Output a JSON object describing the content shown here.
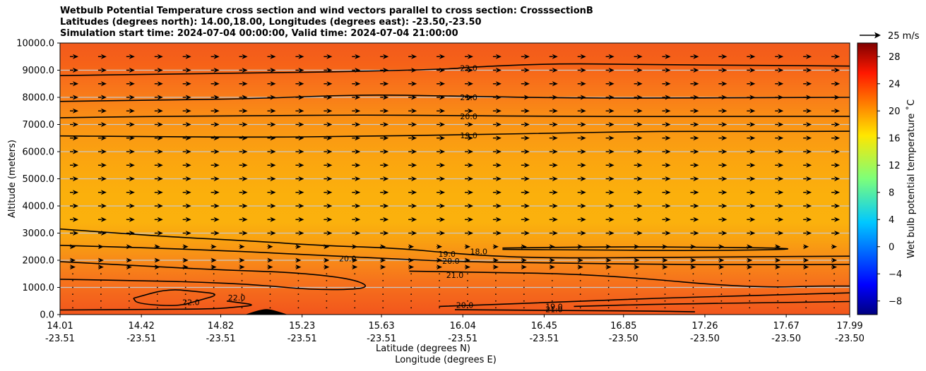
{
  "chart_data": {
    "type": "heatmap",
    "title_lines": [
      "Wetbulb Potential Temperature cross section and wind vectors parallel to cross section: CrosssectionB",
      "Latitudes (degrees north): 14.00,18.00, Longitudes (degrees east): -23.50,-23.50",
      "Simulation start time: 2024-07-04 00:00:00, Valid time: 2024-07-04 21:00:00"
    ],
    "ylabel": "Altitude (meters)",
    "xlabel_lines": [
      "Latitude (degrees N)",
      "Longitude (degrees E)"
    ],
    "ylim": [
      0,
      10000
    ],
    "y_ticks": [
      "0.0",
      "1000.0",
      "2000.0",
      "3000.0",
      "4000.0",
      "5000.0",
      "6000.0",
      "7000.0",
      "8000.0",
      "9000.0",
      "10000.0"
    ],
    "y_tick_values": [
      0,
      1000,
      2000,
      3000,
      4000,
      5000,
      6000,
      7000,
      8000,
      9000,
      10000
    ],
    "xlim": [
      14.01,
      17.99
    ],
    "x_ticks": [
      {
        "lat": "14.01",
        "lon": "-23.51",
        "value": 14.01
      },
      {
        "lat": "14.42",
        "lon": "-23.51",
        "value": 14.42
      },
      {
        "lat": "14.82",
        "lon": "-23.51",
        "value": 14.82
      },
      {
        "lat": "15.23",
        "lon": "-23.51",
        "value": 15.23
      },
      {
        "lat": "15.63",
        "lon": "-23.51",
        "value": 15.63
      },
      {
        "lat": "16.04",
        "lon": "-23.51",
        "value": 16.04
      },
      {
        "lat": "16.45",
        "lon": "-23.51",
        "value": 16.45
      },
      {
        "lat": "16.85",
        "lon": "-23.50",
        "value": 16.85
      },
      {
        "lat": "17.26",
        "lon": "-23.50",
        "value": 17.26
      },
      {
        "lat": "17.67",
        "lon": "-23.50",
        "value": 17.67
      },
      {
        "lat": "17.99",
        "lon": "-23.50",
        "value": 17.99
      }
    ],
    "grid": "horizontal",
    "colorbar": {
      "label": "Wet bulb potential temperature ˚C",
      "range": [
        -10,
        30
      ],
      "ticks": [
        "−8",
        "−4",
        "0",
        "4",
        "8",
        "12",
        "16",
        "20",
        "24",
        "28"
      ],
      "tick_values": [
        -8,
        -4,
        0,
        4,
        8,
        12,
        16,
        20,
        24,
        28
      ]
    },
    "quiver_key": {
      "label": "25 m/s",
      "value": 25
    },
    "wind_vector_levels_m": [
      0,
      250,
      500,
      750,
      1000,
      1250,
      1500,
      1750,
      2000,
      2500,
      3000,
      3500,
      4000,
      4500,
      5000,
      5500,
      6000,
      6500,
      7000,
      7500,
      8000,
      8500,
      9000,
      9500
    ],
    "contours": [
      {
        "value": 22,
        "label": "22.0",
        "points": [
          [
            14.01,
            8800
          ],
          [
            14.5,
            8850
          ],
          [
            15.0,
            8900
          ],
          [
            15.5,
            8950
          ],
          [
            16.0,
            9050
          ],
          [
            16.04,
            9100
          ],
          [
            16.5,
            9250
          ],
          [
            17.0,
            9200
          ],
          [
            17.5,
            9180
          ],
          [
            17.99,
            9150
          ]
        ],
        "label_at": [
          16.07,
          9080
        ]
      },
      {
        "value": 21,
        "label": "21.0",
        "points": [
          [
            14.01,
            7850
          ],
          [
            14.5,
            7900
          ],
          [
            15.0,
            7950
          ],
          [
            15.5,
            8100
          ],
          [
            16.0,
            8050
          ],
          [
            16.5,
            7980
          ],
          [
            17.0,
            7970
          ],
          [
            17.5,
            7990
          ],
          [
            17.99,
            8000
          ]
        ],
        "label_at": [
          16.07,
          8000
        ]
      },
      {
        "value": 20,
        "label": "20.0",
        "points": [
          [
            14.01,
            7250
          ],
          [
            14.5,
            7300
          ],
          [
            15.0,
            7320
          ],
          [
            15.5,
            7350
          ],
          [
            16.0,
            7330
          ],
          [
            16.5,
            7300
          ],
          [
            17.0,
            7290
          ],
          [
            17.5,
            7300
          ],
          [
            17.99,
            7300
          ]
        ],
        "label_at": [
          16.07,
          7300
        ]
      },
      {
        "value": 19,
        "label": "19.0",
        "points": [
          [
            14.01,
            6580
          ],
          [
            14.5,
            6550
          ],
          [
            15.0,
            6530
          ],
          [
            15.5,
            6560
          ],
          [
            16.0,
            6620
          ],
          [
            16.5,
            6680
          ],
          [
            17.0,
            6750
          ],
          [
            17.5,
            6740
          ],
          [
            17.99,
            6750
          ]
        ],
        "label_at": [
          16.07,
          6600
        ]
      },
      {
        "value": 19,
        "label": "19.0",
        "points": [
          [
            14.01,
            3150
          ],
          [
            14.3,
            3000
          ],
          [
            14.6,
            2850
          ],
          [
            15.0,
            2700
          ],
          [
            15.3,
            2550
          ],
          [
            15.7,
            2450
          ],
          [
            16.0,
            2250
          ],
          [
            16.2,
            2150
          ],
          [
            16.5,
            2080
          ],
          [
            17.0,
            2100
          ],
          [
            17.5,
            2130
          ],
          [
            17.99,
            2150
          ]
        ],
        "label_at": [
          15.96,
          2230
        ]
      },
      {
        "value": 20,
        "label": "20.0",
        "points": [
          [
            14.01,
            2550
          ],
          [
            14.5,
            2450
          ],
          [
            15.0,
            2300
          ],
          [
            15.4,
            2150
          ],
          [
            15.7,
            2050
          ],
          [
            16.0,
            1950
          ],
          [
            16.5,
            1900
          ],
          [
            17.0,
            1850
          ],
          [
            17.5,
            1830
          ],
          [
            17.99,
            1850
          ]
        ],
        "label_at": [
          15.98,
          1980
        ]
      },
      {
        "value": 20,
        "label": "20.0",
        "points": [
          [
            14.01,
            1950
          ],
          [
            14.4,
            1800
          ],
          [
            14.8,
            1650
          ],
          [
            15.2,
            1550
          ],
          [
            15.5,
            1300
          ],
          [
            15.58,
            950
          ],
          [
            15.3,
            900
          ],
          [
            15.0,
            1100
          ],
          [
            14.7,
            1200
          ],
          [
            14.4,
            1250
          ],
          [
            14.01,
            1300
          ]
        ],
        "label_at": [
          15.46,
          2070
        ]
      },
      {
        "value": 21,
        "label": "21.0",
        "points": [
          [
            15.77,
            1600
          ],
          [
            16.2,
            1550
          ],
          [
            16.6,
            1500
          ],
          [
            17.0,
            1300
          ],
          [
            17.3,
            1100
          ],
          [
            17.6,
            1000
          ],
          [
            17.8,
            1050
          ],
          [
            17.99,
            1050
          ]
        ],
        "label_at": [
          16.0,
          1450
        ]
      },
      {
        "value": 18,
        "label": "18.0",
        "points": [
          [
            16.24,
            2450
          ],
          [
            16.8,
            2500
          ],
          [
            17.2,
            2480
          ],
          [
            17.6,
            2460
          ],
          [
            17.73,
            2400
          ],
          [
            17.2,
            2350
          ],
          [
            16.7,
            2380
          ],
          [
            16.24,
            2400
          ]
        ],
        "label_at": [
          16.12,
          2320
        ]
      },
      {
        "value": 22,
        "label": "22.0",
        "points": [
          [
            14.38,
            600
          ],
          [
            14.55,
            950
          ],
          [
            14.7,
            850
          ],
          [
            14.82,
            750
          ],
          [
            14.7,
            500
          ],
          [
            14.6,
            300
          ],
          [
            14.4,
            400
          ],
          [
            14.38,
            600
          ]
        ],
        "label_at": [
          14.67,
          450
        ]
      },
      {
        "value": 22,
        "label": "22.0",
        "points": [
          [
            14.01,
            170
          ],
          [
            14.5,
            190
          ],
          [
            14.8,
            210
          ],
          [
            14.9,
            280
          ],
          [
            15.0,
            350
          ],
          [
            14.9,
            450
          ],
          [
            14.85,
            500
          ]
        ],
        "label_at": [
          14.9,
          620
        ]
      },
      {
        "value": 20,
        "label": "20.0",
        "points": [
          [
            15.92,
            300
          ],
          [
            16.5,
            450
          ],
          [
            17.0,
            600
          ],
          [
            17.5,
            700
          ],
          [
            17.99,
            800
          ]
        ],
        "label_at": [
          16.05,
          350
        ]
      },
      {
        "value": 19,
        "label": "19.0",
        "points": [
          [
            16.6,
            300
          ],
          [
            17.0,
            380
          ],
          [
            17.5,
            430
          ],
          [
            17.99,
            480
          ]
        ],
        "label_at": [
          16.5,
          300
        ]
      },
      {
        "value": 21,
        "label": "21.0",
        "points": [
          [
            16.0,
            180
          ],
          [
            16.5,
            150
          ],
          [
            17.0,
            130
          ],
          [
            17.21,
            100
          ]
        ],
        "label_at": [
          16.5,
          200
        ]
      }
    ],
    "terrain_peak": {
      "lat": 15.05,
      "height_m": 200
    }
  }
}
